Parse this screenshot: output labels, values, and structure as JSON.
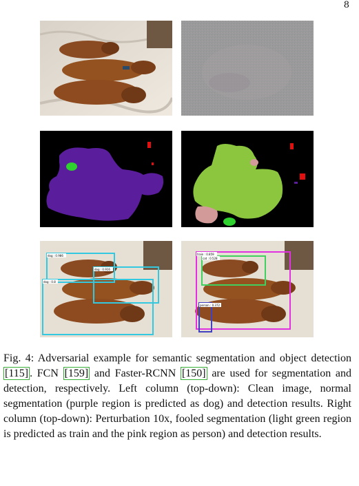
{
  "page": {
    "number": "8"
  },
  "figure": {
    "detections_normal": [
      {
        "label": "dog : 0.986"
      },
      {
        "label": "dog : 0.916"
      },
      {
        "label": "dog : 0.8"
      }
    ],
    "detections_fooled": [
      {
        "label": "train : 0.859"
      },
      {
        "label": "cat : 0.528"
      },
      {
        "label": "person : 0.372"
      }
    ],
    "colors": {
      "dog_region": "#5a1d9c",
      "train_region": "#8cc63f",
      "person_region": "#d39a9a",
      "small_green": "#2ed12e",
      "red_spot": "#e01010",
      "box_cyan": "#32c8e0",
      "box_magenta": "#e030e0",
      "box_green": "#40d060",
      "box_blue": "#4040c0"
    }
  },
  "caption": {
    "part1": "Fig. 4: Adversarial example for semantic segmentation and object detection ",
    "ref1": "[115]",
    "part2": ". FCN ",
    "ref2": "[159]",
    "part3": " and Faster-RCNN ",
    "ref3": "[150]",
    "part4": " are used for segmentation and detection, respectively. Left column (top-down): Clean image, normal segmentation (purple region is predicted as dog) and detection results. Right column (top-down): Perturbation 10x, fooled segmentation (light green region is predicted as train and the pink region as person) and detection results."
  }
}
